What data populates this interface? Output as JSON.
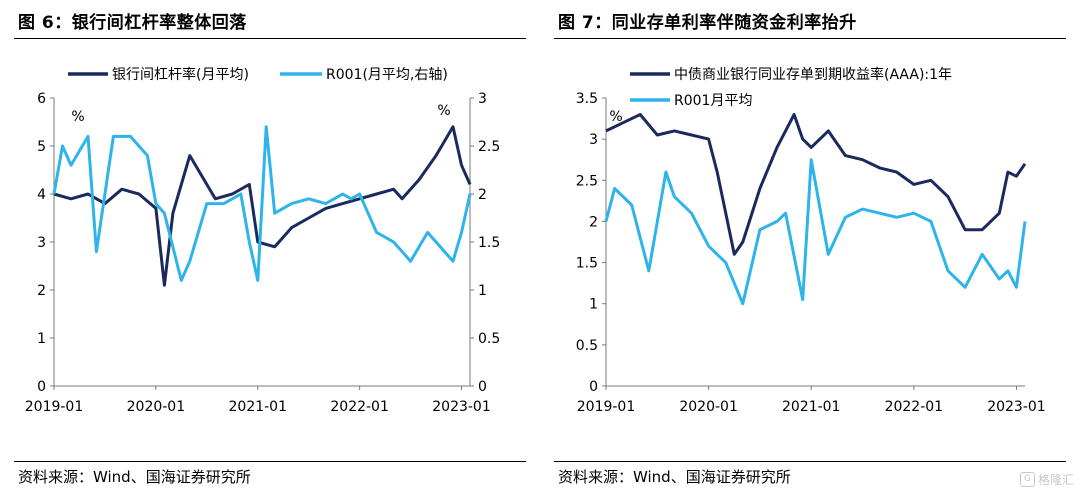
{
  "colors": {
    "navy": "#1a2a5e",
    "cyan": "#2eb4ea",
    "axis": "#7a7a7a"
  },
  "watermark": {
    "icon": "gelonghui-logo-icon",
    "text": "格隆汇"
  },
  "panels": [
    {
      "title": "图 6：银行间杠杆率整体回落",
      "source": "资料来源：Wind、国海证券研究所",
      "chart_data": {
        "type": "line",
        "title": "图 6：银行间杠杆率整体回落",
        "x_ticks": [
          "2019-01",
          "2020-01",
          "2021-01",
          "2022-01",
          "2023-01"
        ],
        "x_range": [
          "2019-01",
          "2023-02"
        ],
        "left_axis": {
          "min": 0,
          "max": 6,
          "ticks": [
            "0",
            "1",
            "2",
            "3",
            "4",
            "5",
            "6"
          ],
          "unit": "%"
        },
        "right_axis": {
          "min": 0,
          "max": 3,
          "ticks": [
            "0",
            "0.5",
            "1",
            "1.5",
            "2",
            "2.5",
            "3"
          ],
          "unit": "%"
        },
        "legend": "top",
        "grid": false,
        "series": [
          {
            "name": "银行间杠杆率(月平均)",
            "axis": "left",
            "color": "#1a2a5e",
            "points": [
              [
                "2019-01",
                4.0
              ],
              [
                "2019-03",
                3.9
              ],
              [
                "2019-05",
                4.0
              ],
              [
                "2019-07",
                3.8
              ],
              [
                "2019-09",
                4.1
              ],
              [
                "2019-11",
                4.0
              ],
              [
                "2020-01",
                3.7
              ],
              [
                "2020-02",
                2.1
              ],
              [
                "2020-03",
                3.6
              ],
              [
                "2020-05",
                4.8
              ],
              [
                "2020-07",
                4.2
              ],
              [
                "2020-08",
                3.9
              ],
              [
                "2020-10",
                4.0
              ],
              [
                "2020-12",
                4.2
              ],
              [
                "2021-01",
                3.0
              ],
              [
                "2021-03",
                2.9
              ],
              [
                "2021-05",
                3.3
              ],
              [
                "2021-07",
                3.5
              ],
              [
                "2021-09",
                3.7
              ],
              [
                "2021-11",
                3.8
              ],
              [
                "2022-01",
                3.9
              ],
              [
                "2022-03",
                4.0
              ],
              [
                "2022-05",
                4.1
              ],
              [
                "2022-06",
                3.9
              ],
              [
                "2022-08",
                4.3
              ],
              [
                "2022-10",
                4.8
              ],
              [
                "2022-12",
                5.4
              ],
              [
                "2023-01",
                4.6
              ],
              [
                "2023-02",
                4.2
              ]
            ]
          },
          {
            "name": "R001(月平均,右轴)",
            "axis": "right",
            "color": "#2eb4ea",
            "points": [
              [
                "2019-01",
                2.0
              ],
              [
                "2019-02",
                2.5
              ],
              [
                "2019-03",
                2.3
              ],
              [
                "2019-05",
                2.6
              ],
              [
                "2019-06",
                1.4
              ],
              [
                "2019-08",
                2.6
              ],
              [
                "2019-10",
                2.6
              ],
              [
                "2019-12",
                2.4
              ],
              [
                "2020-01",
                1.9
              ],
              [
                "2020-02",
                1.8
              ],
              [
                "2020-04",
                1.1
              ],
              [
                "2020-05",
                1.3
              ],
              [
                "2020-07",
                1.9
              ],
              [
                "2020-09",
                1.9
              ],
              [
                "2020-11",
                2.0
              ],
              [
                "2020-12",
                1.5
              ],
              [
                "2021-01",
                1.1
              ],
              [
                "2021-02",
                2.7
              ],
              [
                "2021-03",
                1.8
              ],
              [
                "2021-05",
                1.9
              ],
              [
                "2021-07",
                1.95
              ],
              [
                "2021-09",
                1.9
              ],
              [
                "2021-11",
                2.0
              ],
              [
                "2021-12",
                1.95
              ],
              [
                "2022-01",
                2.0
              ],
              [
                "2022-03",
                1.6
              ],
              [
                "2022-05",
                1.5
              ],
              [
                "2022-07",
                1.3
              ],
              [
                "2022-09",
                1.6
              ],
              [
                "2022-11",
                1.4
              ],
              [
                "2022-12",
                1.3
              ],
              [
                "2023-01",
                1.6
              ],
              [
                "2023-02",
                2.0
              ]
            ]
          }
        ]
      }
    },
    {
      "title": "图 7：同业存单利率伴随资金利率抬升",
      "source": "资料来源：Wind、国海证券研究所",
      "chart_data": {
        "type": "line",
        "title": "图 7：同业存单利率伴随资金利率抬升",
        "x_ticks": [
          "2019-01",
          "2020-01",
          "2021-01",
          "2022-01",
          "2023-01"
        ],
        "x_range": [
          "2019-01",
          "2023-02"
        ],
        "left_axis": {
          "min": 0,
          "max": 3.5,
          "ticks": [
            "0",
            "0.5",
            "1",
            "1.5",
            "2",
            "2.5",
            "3",
            "3.5"
          ],
          "unit": "%"
        },
        "legend": "top",
        "grid": false,
        "series": [
          {
            "name": "中债商业银行同业存单到期收益率(AAA):1年",
            "axis": "left",
            "color": "#1a2a5e",
            "points": [
              [
                "2019-01",
                3.1
              ],
              [
                "2019-03",
                3.2
              ],
              [
                "2019-05",
                3.3
              ],
              [
                "2019-07",
                3.05
              ],
              [
                "2019-09",
                3.1
              ],
              [
                "2019-11",
                3.05
              ],
              [
                "2020-01",
                3.0
              ],
              [
                "2020-02",
                2.6
              ],
              [
                "2020-04",
                1.6
              ],
              [
                "2020-05",
                1.75
              ],
              [
                "2020-07",
                2.4
              ],
              [
                "2020-09",
                2.9
              ],
              [
                "2020-11",
                3.3
              ],
              [
                "2020-12",
                3.0
              ],
              [
                "2021-01",
                2.9
              ],
              [
                "2021-03",
                3.1
              ],
              [
                "2021-05",
                2.8
              ],
              [
                "2021-07",
                2.75
              ],
              [
                "2021-09",
                2.65
              ],
              [
                "2021-11",
                2.6
              ],
              [
                "2022-01",
                2.45
              ],
              [
                "2022-03",
                2.5
              ],
              [
                "2022-05",
                2.3
              ],
              [
                "2022-07",
                1.9
              ],
              [
                "2022-09",
                1.9
              ],
              [
                "2022-11",
                2.1
              ],
              [
                "2022-12",
                2.6
              ],
              [
                "2023-01",
                2.55
              ],
              [
                "2023-02",
                2.7
              ]
            ]
          },
          {
            "name": "R001月平均",
            "axis": "left",
            "color": "#2eb4ea",
            "points": [
              [
                "2019-01",
                2.0
              ],
              [
                "2019-02",
                2.4
              ],
              [
                "2019-04",
                2.2
              ],
              [
                "2019-06",
                1.4
              ],
              [
                "2019-08",
                2.6
              ],
              [
                "2019-09",
                2.3
              ],
              [
                "2019-11",
                2.1
              ],
              [
                "2020-01",
                1.7
              ],
              [
                "2020-03",
                1.5
              ],
              [
                "2020-05",
                1.0
              ],
              [
                "2020-07",
                1.9
              ],
              [
                "2020-09",
                2.0
              ],
              [
                "2020-10",
                2.1
              ],
              [
                "2020-12",
                1.05
              ],
              [
                "2021-01",
                2.75
              ],
              [
                "2021-03",
                1.6
              ],
              [
                "2021-05",
                2.05
              ],
              [
                "2021-07",
                2.15
              ],
              [
                "2021-09",
                2.1
              ],
              [
                "2021-11",
                2.05
              ],
              [
                "2022-01",
                2.1
              ],
              [
                "2022-03",
                2.0
              ],
              [
                "2022-05",
                1.4
              ],
              [
                "2022-07",
                1.2
              ],
              [
                "2022-09",
                1.6
              ],
              [
                "2022-11",
                1.3
              ],
              [
                "2022-12",
                1.4
              ],
              [
                "2023-01",
                1.2
              ],
              [
                "2023-02",
                2.0
              ]
            ]
          }
        ]
      }
    }
  ]
}
